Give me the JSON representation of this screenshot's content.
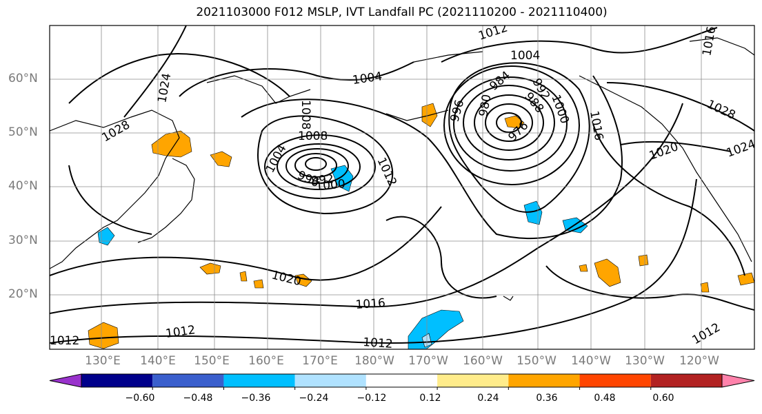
{
  "title": "2021103000 F012 MSLP, IVT Landfall PC (2021110200 - 2021110400)",
  "latitude_labels": [
    "60°N",
    "50°N",
    "40°N",
    "30°N",
    "20°N"
  ],
  "longitude_labels": [
    "130°E",
    "140°E",
    "150°E",
    "160°E",
    "170°E",
    "180°W",
    "170°W",
    "160°W",
    "150°W",
    "140°W",
    "130°W",
    "120°W"
  ],
  "contour_labels": [
    "1004",
    "1008",
    "1004",
    "1008",
    "1012",
    "996",
    "992",
    "1000",
    "1012",
    "1020",
    "1016",
    "1012",
    "1012",
    "1004",
    "1012",
    "996",
    "984",
    "988",
    "980",
    "976",
    "992",
    "1000",
    "1016",
    "1020",
    "1028",
    "1024",
    "1028",
    "1024",
    "1016",
    "1012"
  ],
  "colorbar": {
    "tick_labels": [
      "−0.60",
      "−0.48",
      "−0.36",
      "−0.24",
      "−0.12",
      "0.12",
      "0.24",
      "0.36",
      "0.48",
      "0.60"
    ],
    "colors": [
      "#9932cc",
      "#00008b",
      "#3a5fcd",
      "#00bfff",
      "#b0e2ff",
      "#ffffff",
      "#ffec8b",
      "#ffa500",
      "#ff4500",
      "#b22222",
      "#ff82ab"
    ]
  }
}
